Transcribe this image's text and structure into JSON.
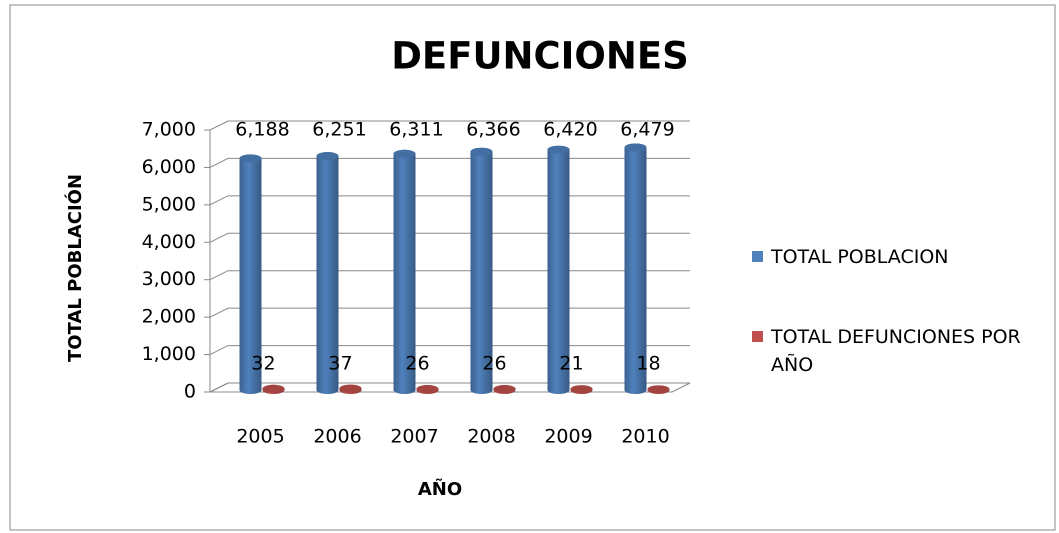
{
  "chart_data": {
    "type": "bar3d",
    "title": "DEFUNCIONES",
    "x_label": "AÑO",
    "y_label": "TOTAL POBLACIÓN",
    "categories": [
      "2005",
      "2006",
      "2007",
      "2008",
      "2009",
      "2010"
    ],
    "series": [
      {
        "name": "TOTAL POBLACION",
        "color": "#4f81bd",
        "values": [
          6188,
          6251,
          6311,
          6366,
          6420,
          6479
        ],
        "value_labels": [
          "6,188",
          "6,251",
          "6,311",
          "6,366",
          "6,420",
          "6,479"
        ]
      },
      {
        "name": "TOTAL DEFUNCIONES POR AÑO",
        "color": "#c0504d",
        "values": [
          32,
          37,
          26,
          26,
          21,
          18
        ]
      }
    ],
    "ylim": [
      0,
      7000
    ],
    "yticks": [
      0,
      {
        "value": 1000,
        "label": "1,000"
      },
      {
        "value": 2000,
        "label": "2,000"
      },
      {
        "value": 3000,
        "label": "3,000"
      },
      {
        "value": 4000,
        "label": "4,000"
      },
      {
        "value": 5000,
        "label": "5,000"
      },
      {
        "value": 6000,
        "label": "6,000"
      },
      {
        "value": 7000,
        "label": "7,000"
      }
    ],
    "grid": true,
    "legend": "right"
  }
}
